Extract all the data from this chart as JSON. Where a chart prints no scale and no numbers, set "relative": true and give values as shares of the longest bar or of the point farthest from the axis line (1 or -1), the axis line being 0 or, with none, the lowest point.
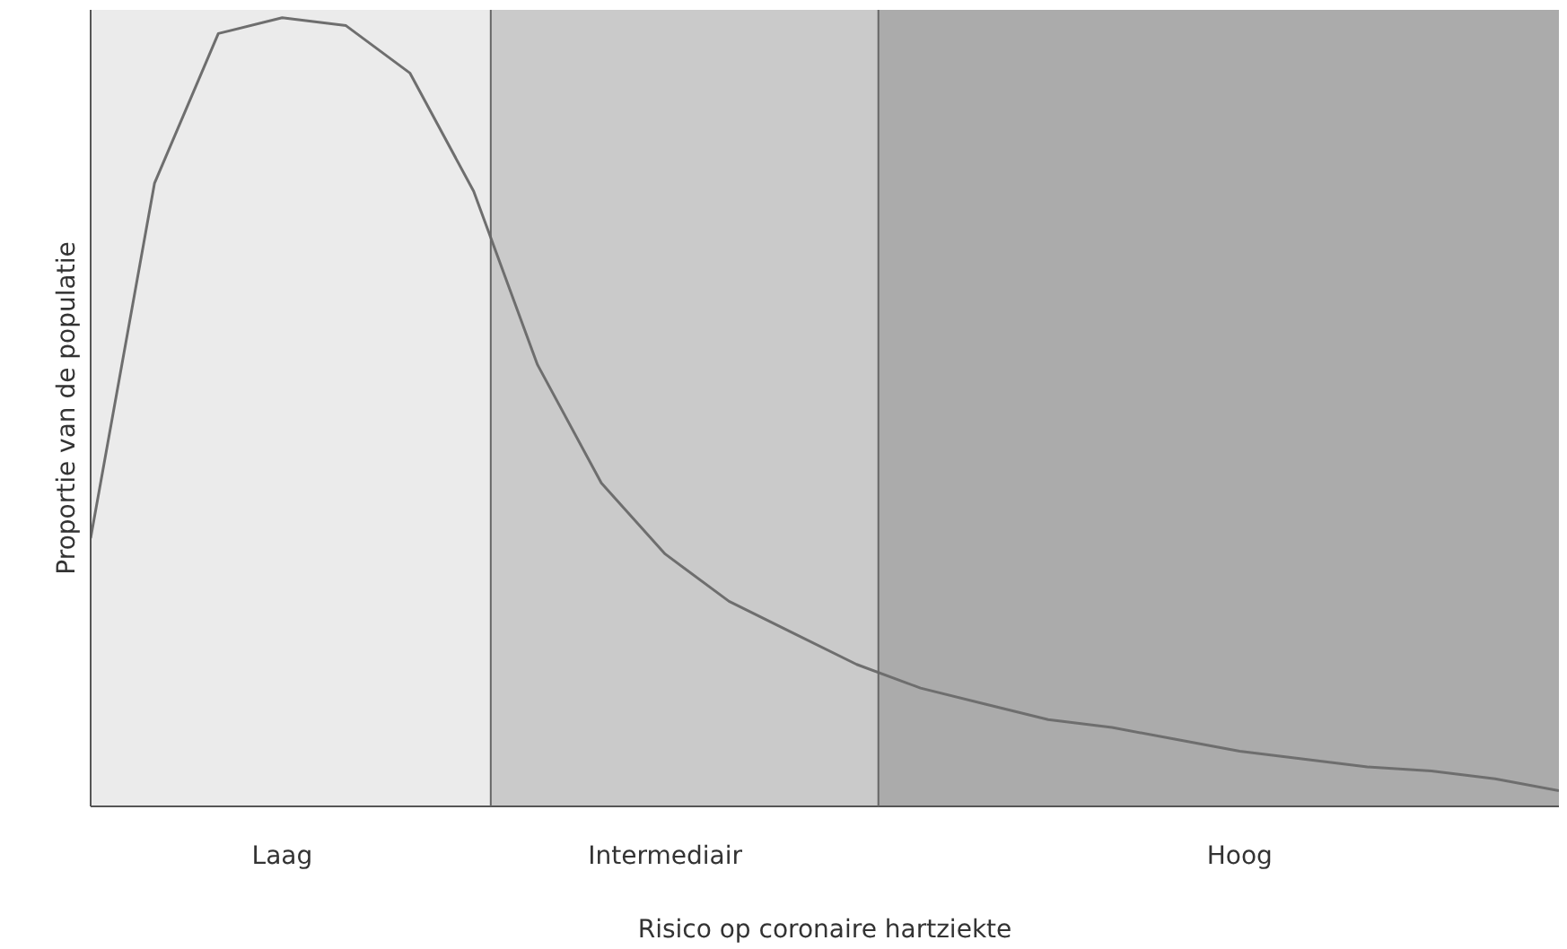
{
  "chart_data": {
    "type": "line",
    "relative": true,
    "xlabel": "Risico op coronaire hartziekte",
    "ylabel": "Proportie van de populatie",
    "categories": [
      null,
      null,
      null,
      "Laag",
      null,
      null,
      null,
      null,
      null,
      "Intermediair",
      null,
      null,
      null,
      null,
      null,
      null,
      null,
      null,
      "Hoog",
      null,
      null,
      null,
      null,
      null
    ],
    "series": [
      {
        "color": "#6e6e6e",
        "values": [
          0.34,
          0.79,
          0.98,
          1,
          0.99,
          0.93,
          0.78,
          0.56,
          0.41,
          0.32,
          0.26,
          0.22,
          0.18,
          0.15,
          0.13,
          0.11,
          0.1,
          0.085,
          0.07,
          0.06,
          0.05,
          0.045,
          0.035,
          0.02
        ]
      }
    ],
    "marker": "none",
    "line_style": "solid"
  }
}
